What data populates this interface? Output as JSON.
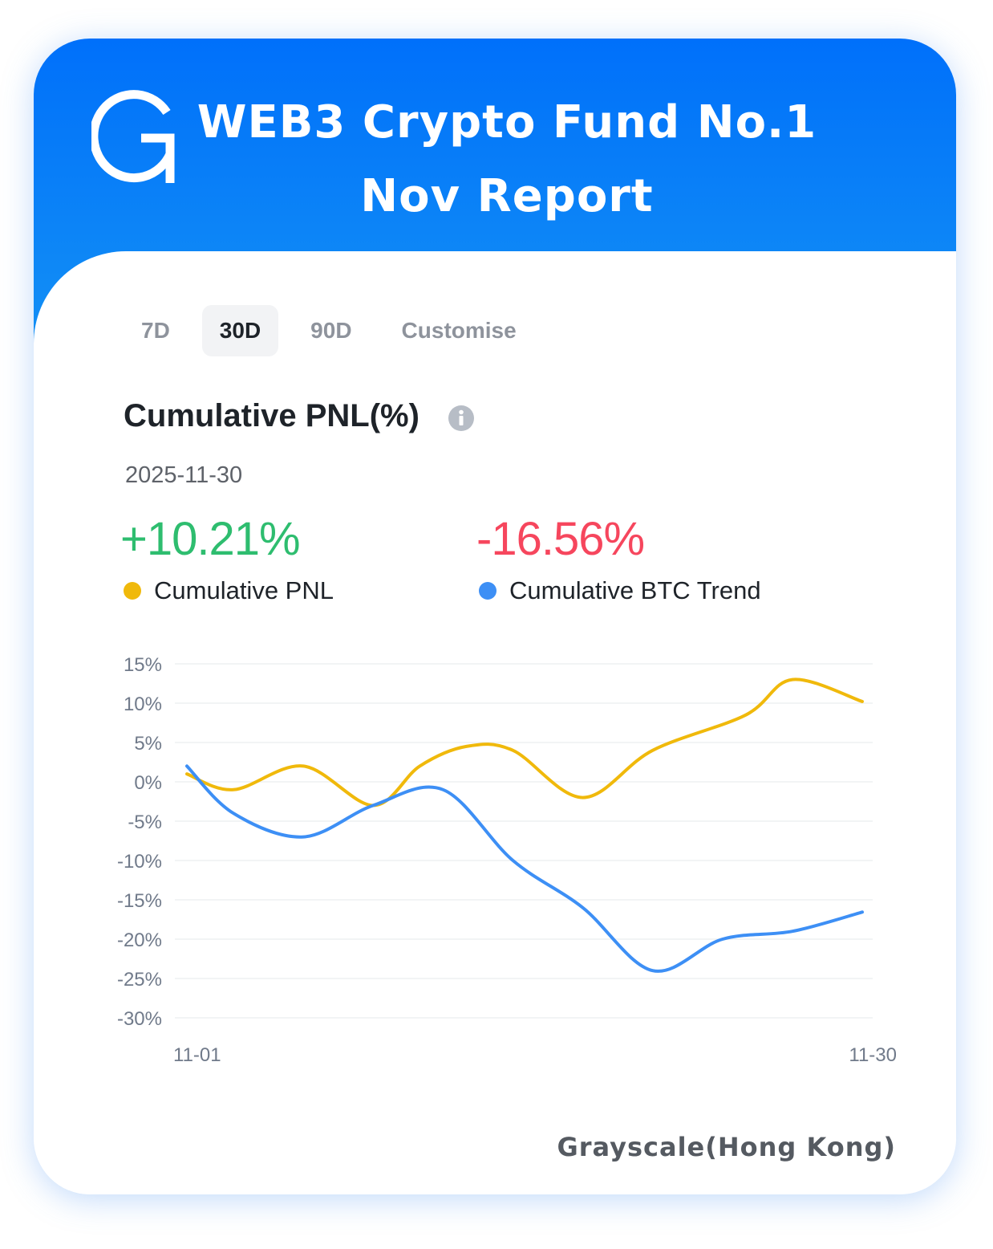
{
  "header": {
    "logo_letter": "G",
    "title_line1": "WEB3 Crypto Fund No.1",
    "title_line2": "Nov Report"
  },
  "tabs": [
    {
      "label": "7D",
      "active": false
    },
    {
      "label": "30D",
      "active": true
    },
    {
      "label": "90D",
      "active": false
    },
    {
      "label": "Customise",
      "active": false
    }
  ],
  "section": {
    "title": "Cumulative PNL(%)",
    "date": "2025-11-30"
  },
  "metrics": {
    "pnl_value": "+10.21%",
    "btc_value": "-16.56%"
  },
  "legend": {
    "pnl_label": "Cumulative PNL",
    "btc_label": "Cumulative BTC Trend"
  },
  "colors": {
    "pnl": "#f0b90b",
    "btc": "#3d8ff5",
    "positive": "#2ebd6f",
    "negative": "#f6465d"
  },
  "chart_data": {
    "type": "line",
    "x_tick_labels": [
      "11-01",
      "11-30"
    ],
    "x_range": [
      1,
      30
    ],
    "ylim": [
      -30,
      15
    ],
    "y_ticks": [
      15,
      10,
      5,
      0,
      -5,
      -10,
      -15,
      -20,
      -25,
      -30
    ],
    "y_tick_format": "%",
    "grid": true,
    "series": [
      {
        "name": "Cumulative PNL",
        "color": "#f0b90b",
        "x": [
          1,
          3,
          6,
          9,
          11,
          13,
          15,
          18,
          21,
          25,
          27,
          30
        ],
        "values": [
          1,
          -1,
          2,
          -3,
          2,
          4.5,
          4,
          -2,
          4,
          8.5,
          13,
          10.21
        ]
      },
      {
        "name": "Cumulative BTC Trend",
        "color": "#3d8ff5",
        "x": [
          1,
          3,
          6,
          9,
          12,
          15,
          18,
          21,
          24,
          27,
          30
        ],
        "values": [
          2,
          -4,
          -7,
          -3,
          -1,
          -10,
          -16,
          -24,
          -20,
          -19,
          -16.56
        ]
      }
    ],
    "footer": "Grayscale(Hong Kong)"
  }
}
